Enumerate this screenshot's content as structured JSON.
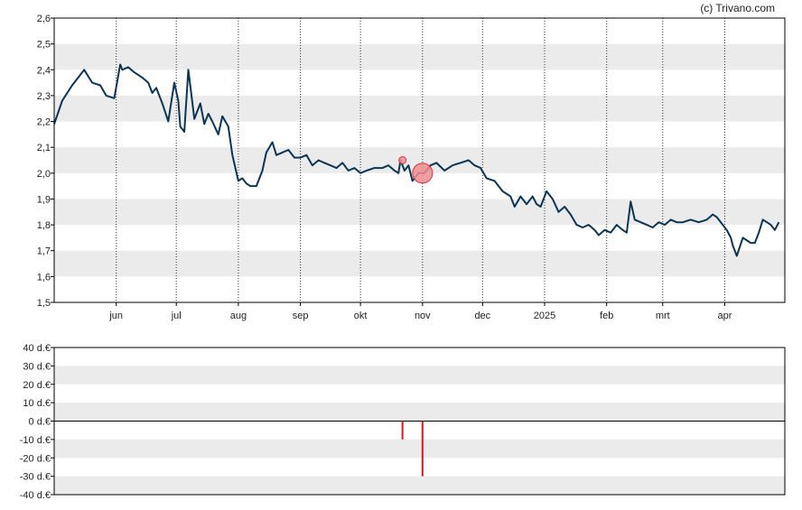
{
  "credit": "(c) Trivano.com",
  "colors": {
    "price_line": "#0d3553",
    "band": "#ebebeb",
    "marker_fill": "#ef8e93",
    "marker_stroke": "#d9343f",
    "insider_bar": "#e8141c",
    "axis": "#000000"
  },
  "chart_data": [
    {
      "type": "line",
      "title": "",
      "xlabel": "",
      "ylabel": "",
      "ylim": [
        1.5,
        2.6
      ],
      "yticks": [
        "2,6",
        "2,5",
        "2,4",
        "2,3",
        "2,2",
        "2,1",
        "2,0",
        "1,9",
        "1,8",
        "1,7",
        "1,6",
        "1,5"
      ],
      "xticks": [
        "jun",
        "jul",
        "aug",
        "sep",
        "okt",
        "nov",
        "dec",
        "2025",
        "feb",
        "mrt",
        "apr"
      ],
      "grid": "alternating horizontal bands, dotted vertical lines at month ticks",
      "series": [
        {
          "x": [
            "2024-05-01",
            "2024-05-05",
            "2024-05-10",
            "2024-05-12",
            "2024-05-16",
            "2024-05-20",
            "2024-05-24",
            "2024-05-27",
            "2024-05-31",
            "2024-06-03",
            "2024-06-04",
            "2024-06-07",
            "2024-06-10",
            "2024-06-14",
            "2024-06-17",
            "2024-06-19",
            "2024-06-21",
            "2024-06-24",
            "2024-06-27",
            "2024-06-30",
            "2024-07-02",
            "2024-07-03",
            "2024-07-05",
            "2024-07-07",
            "2024-07-10",
            "2024-07-13",
            "2024-07-15",
            "2024-07-17",
            "2024-07-19",
            "2024-07-22",
            "2024-07-24",
            "2024-07-27",
            "2024-07-29",
            "2024-08-01",
            "2024-08-03",
            "2024-08-05",
            "2024-08-07",
            "2024-08-10",
            "2024-08-13",
            "2024-08-15",
            "2024-08-18",
            "2024-08-20",
            "2024-08-23",
            "2024-08-26",
            "2024-08-29",
            "2024-09-01",
            "2024-09-04",
            "2024-09-07",
            "2024-09-10",
            "2024-09-13",
            "2024-09-16",
            "2024-09-19",
            "2024-09-22",
            "2024-09-25",
            "2024-09-28",
            "2024-10-01",
            "2024-10-04",
            "2024-10-08",
            "2024-10-12",
            "2024-10-15",
            "2024-10-18",
            "2024-10-20",
            "2024-10-21",
            "2024-10-23",
            "2024-10-25",
            "2024-10-27",
            "2024-10-30",
            "2024-11-02",
            "2024-11-05",
            "2024-11-08",
            "2024-11-12",
            "2024-11-16",
            "2024-11-20",
            "2024-11-24",
            "2024-11-27",
            "2024-11-30",
            "2024-12-03",
            "2024-12-07",
            "2024-12-11",
            "2024-12-15",
            "2024-12-17",
            "2024-12-20",
            "2024-12-23",
            "2024-12-26",
            "2024-12-28",
            "2024-12-30",
            "2025-01-02",
            "2025-01-05",
            "2025-01-08",
            "2025-01-11",
            "2025-01-14",
            "2025-01-17",
            "2025-01-20",
            "2025-01-23",
            "2025-01-26",
            "2025-01-28",
            "2025-01-31",
            "2025-02-03",
            "2025-02-06",
            "2025-02-09",
            "2025-02-11",
            "2025-02-13",
            "2025-02-15",
            "2025-02-18",
            "2025-02-21",
            "2025-02-24",
            "2025-02-27",
            "2025-03-02",
            "2025-03-05",
            "2025-03-08",
            "2025-03-11",
            "2025-03-15",
            "2025-03-19",
            "2025-03-23",
            "2025-03-26",
            "2025-03-28",
            "2025-03-31",
            "2025-04-02",
            "2025-04-04",
            "2025-04-05",
            "2025-04-07",
            "2025-04-10",
            "2025-04-14",
            "2025-04-16",
            "2025-04-18",
            "2025-04-20",
            "2025-04-22",
            "2025-04-24",
            "2025-04-26",
            "2025-04-28"
          ],
          "values": [
            2.19,
            2.28,
            2.34,
            2.36,
            2.4,
            2.35,
            2.34,
            2.3,
            2.29,
            2.42,
            2.4,
            2.41,
            2.39,
            2.37,
            2.35,
            2.31,
            2.33,
            2.27,
            2.2,
            2.35,
            2.28,
            2.18,
            2.16,
            2.4,
            2.21,
            2.27,
            2.19,
            2.23,
            2.2,
            2.15,
            2.22,
            2.18,
            2.07,
            1.97,
            1.98,
            1.96,
            1.95,
            1.95,
            2.01,
            2.08,
            2.12,
            2.07,
            2.08,
            2.09,
            2.06,
            2.06,
            2.07,
            2.03,
            2.05,
            2.04,
            2.03,
            2.02,
            2.04,
            2.01,
            2.02,
            2.0,
            2.01,
            2.02,
            2.02,
            2.03,
            2.01,
            2.0,
            2.05,
            2.01,
            2.03,
            1.97,
            2.0,
            2.0,
            2.03,
            2.04,
            2.01,
            2.03,
            2.04,
            2.05,
            2.03,
            2.02,
            1.98,
            1.97,
            1.93,
            1.91,
            1.87,
            1.91,
            1.88,
            1.91,
            1.88,
            1.87,
            1.93,
            1.9,
            1.85,
            1.87,
            1.84,
            1.8,
            1.79,
            1.8,
            1.78,
            1.76,
            1.78,
            1.77,
            1.8,
            1.78,
            1.77,
            1.89,
            1.82,
            1.81,
            1.8,
            1.79,
            1.81,
            1.8,
            1.82,
            1.81,
            1.81,
            1.82,
            1.81,
            1.82,
            1.84,
            1.83,
            1.8,
            1.78,
            1.75,
            1.72,
            1.68,
            1.75,
            1.73,
            1.73,
            1.77,
            1.82,
            1.81,
            1.8,
            1.78,
            1.81
          ]
        }
      ],
      "markers": [
        {
          "x": "2024-10-22",
          "value": 2.05,
          "size": "small"
        },
        {
          "x": "2024-11-01",
          "value": 2.0,
          "size": "large"
        }
      ]
    },
    {
      "type": "bar",
      "title": "",
      "ylabel": "",
      "ylim": [
        -40,
        40
      ],
      "yticks": [
        "40 d.€",
        "30 d.€",
        "20 d.€",
        "10 d.€",
        "0 d.€",
        "-10 d.€",
        "-20 d.€",
        "-30 d.€",
        "-40 d.€"
      ],
      "bars": [
        {
          "x": "2024-10-22",
          "value": -10
        },
        {
          "x": "2024-11-01",
          "value": -30
        }
      ]
    }
  ]
}
